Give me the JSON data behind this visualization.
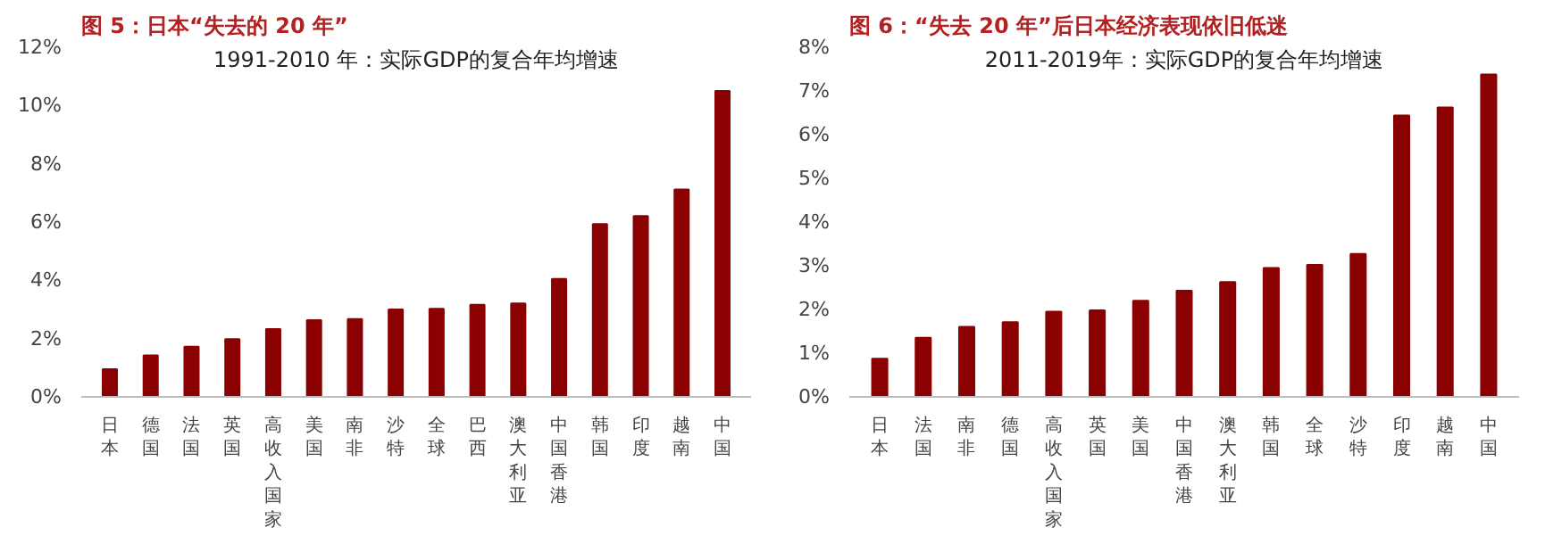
{
  "chart_data": [
    {
      "type": "bar",
      "title": "图 5：日本“失去的 20 年”",
      "subtitle": "1991-2010 年：实际GDP的复合年均增速",
      "categories": [
        "日本",
        "德国",
        "法国",
        "英国",
        "高收入国家",
        "美国",
        "南非",
        "沙特",
        "全球",
        "巴西",
        "澳大利亚",
        "中国香港",
        "韩国",
        "印度",
        "越南",
        "中国"
      ],
      "values": [
        0.95,
        1.42,
        1.72,
        1.98,
        2.33,
        2.63,
        2.67,
        3.0,
        3.02,
        3.16,
        3.21,
        4.05,
        5.93,
        6.21,
        7.12,
        10.5
      ],
      "color": "#8b0000",
      "ylim": [
        0,
        12
      ],
      "yticks": [
        {
          "value": 0,
          "label": "0%"
        },
        {
          "value": 2,
          "label": "2%"
        },
        {
          "value": 4,
          "label": "4%"
        },
        {
          "value": 6,
          "label": "6%"
        },
        {
          "value": 8,
          "label": "8%"
        },
        {
          "value": 10,
          "label": "10%"
        },
        {
          "value": 12,
          "label": "12%"
        }
      ],
      "grid": false,
      "legend": false
    },
    {
      "type": "bar",
      "title": "图 6：“失去 20 年”后日本经济表现依旧低迷",
      "subtitle": "2011-2019年：实际GDP的复合年均增速",
      "categories": [
        "日本",
        "法国",
        "南非",
        "德国",
        "高收入国家",
        "英国",
        "美国",
        "中国香港",
        "澳大利亚",
        "韩国",
        "全球",
        "沙特",
        "印度",
        "越南",
        "中国"
      ],
      "values": [
        0.87,
        1.35,
        1.6,
        1.71,
        1.95,
        1.98,
        2.2,
        2.43,
        2.63,
        2.95,
        3.02,
        3.27,
        6.44,
        6.62,
        7.38
      ],
      "color": "#8b0000",
      "ylim": [
        0,
        8
      ],
      "yticks": [
        {
          "value": 0,
          "label": "0%"
        },
        {
          "value": 1,
          "label": "1%"
        },
        {
          "value": 2,
          "label": "2%"
        },
        {
          "value": 3,
          "label": "3%"
        },
        {
          "value": 4,
          "label": "4%"
        },
        {
          "value": 5,
          "label": "5%"
        },
        {
          "value": 6,
          "label": "6%"
        },
        {
          "value": 7,
          "label": "7%"
        },
        {
          "value": 8,
          "label": "8%"
        }
      ],
      "grid": false,
      "legend": false
    }
  ]
}
